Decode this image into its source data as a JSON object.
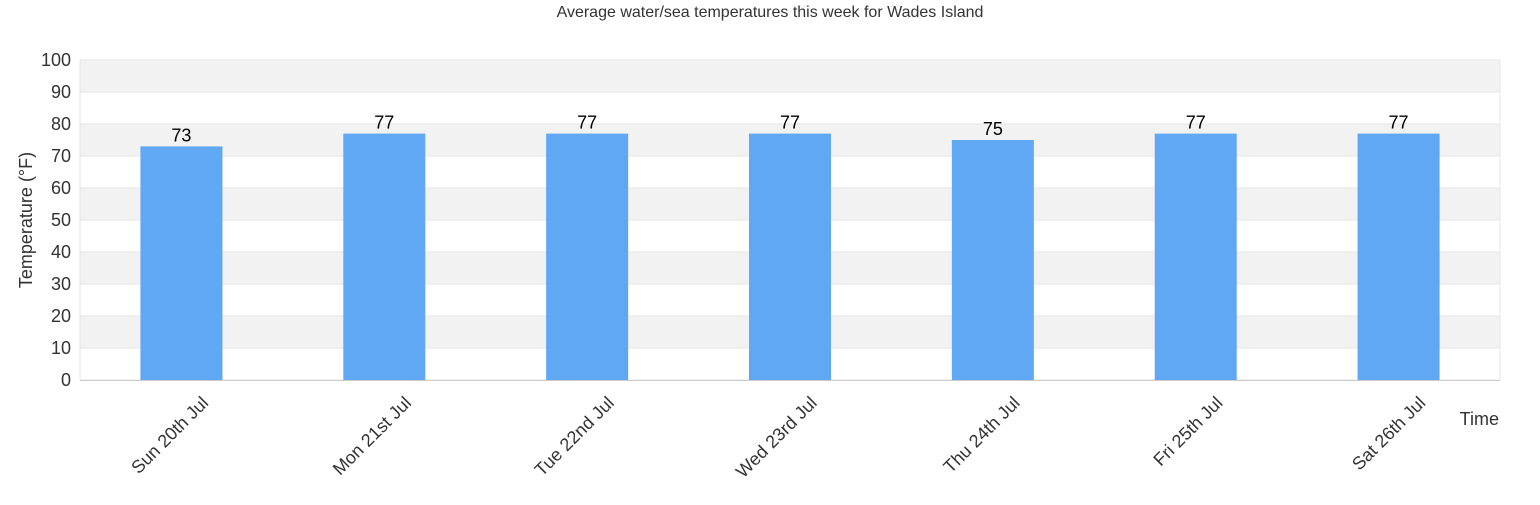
{
  "chart_data": {
    "type": "bar",
    "title": "Average water/sea temperatures this week for Wades Island",
    "xlabel": "Time",
    "ylabel": "Temperature (°F)",
    "categories": [
      "Sun 20th Jul",
      "Mon 21st Jul",
      "Tue 22nd Jul",
      "Wed 23rd Jul",
      "Thu 24th Jul",
      "Fri 25th Jul",
      "Sat 26th Jul"
    ],
    "values": [
      73,
      77,
      77,
      77,
      75,
      77,
      77
    ],
    "ylim": [
      0,
      100
    ],
    "yticks": [
      0,
      10,
      20,
      30,
      40,
      50,
      60,
      70,
      80,
      90,
      100
    ],
    "grid": true,
    "legend": "none",
    "colors": {
      "bar": "#60a7f4",
      "band": "#f2f2f2",
      "gridline": "#e6e6e6",
      "axis": "#cccccc",
      "text": "#333333"
    }
  }
}
